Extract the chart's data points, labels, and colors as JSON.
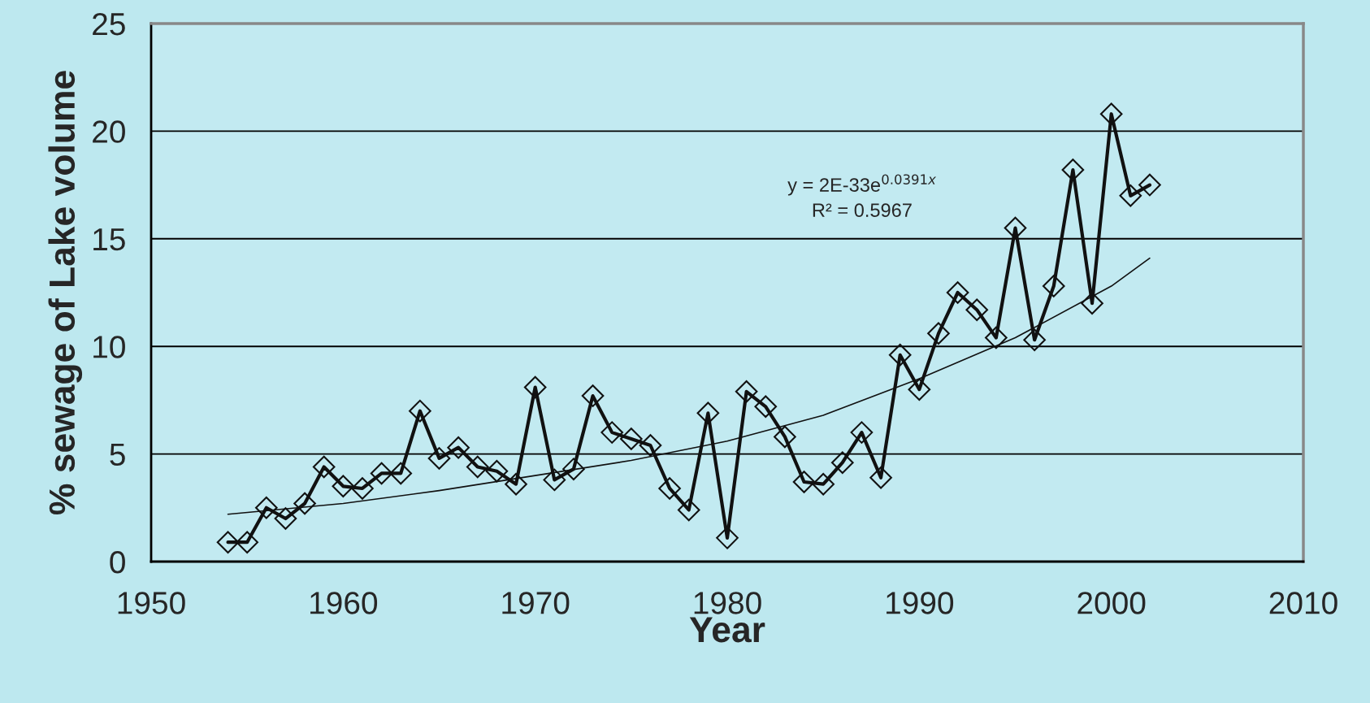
{
  "chart_data": {
    "type": "line",
    "xlabel": "Year",
    "ylabel": "% sewage of Lake volume",
    "xlim": [
      1950,
      2010
    ],
    "xticks": [
      1950,
      1960,
      1970,
      1980,
      1990,
      2000,
      2010
    ],
    "ylim": [
      0,
      25
    ],
    "yticks": [
      0,
      5,
      10,
      15,
      20,
      25
    ],
    "grid": "y",
    "legend": false,
    "series": [
      {
        "color": "#111111",
        "marker": "diamond",
        "line_style": "solid",
        "x": [
          1954,
          1955,
          1956,
          1957,
          1958,
          1959,
          1960,
          1961,
          1962,
          1963,
          1964,
          1965,
          1966,
          1967,
          1968,
          1969,
          1970,
          1971,
          1972,
          1973,
          1974,
          1975,
          1976,
          1977,
          1978,
          1979,
          1980,
          1981,
          1982,
          1983,
          1984,
          1985,
          1986,
          1987,
          1988,
          1989,
          1990,
          1991,
          1992,
          1993,
          1994,
          1995,
          1996,
          1997,
          1998,
          1999,
          2000,
          2001,
          2002
        ],
        "values": [
          0.9,
          0.9,
          2.5,
          2.0,
          2.7,
          4.4,
          3.5,
          3.4,
          4.1,
          4.1,
          7.0,
          4.8,
          5.3,
          4.4,
          4.2,
          3.6,
          8.1,
          3.8,
          4.3,
          7.7,
          6.0,
          5.7,
          5.4,
          3.4,
          2.4,
          6.9,
          1.1,
          7.9,
          7.2,
          5.8,
          3.7,
          3.6,
          4.6,
          6.0,
          3.9,
          9.6,
          8.0,
          10.6,
          12.5,
          11.7,
          10.4,
          15.5,
          10.3,
          12.8,
          18.2,
          12.0,
          20.8,
          17.0,
          17.5
        ]
      },
      {
        "type": "line",
        "color": "#111111",
        "marker": "none",
        "line_style": "solid",
        "x": [
          1954,
          1960,
          1965,
          1970,
          1975,
          1980,
          1985,
          1990,
          1995,
          2000,
          2002
        ],
        "values": [
          2.2,
          2.7,
          3.3,
          4.0,
          4.7,
          5.6,
          6.8,
          8.5,
          10.4,
          12.8,
          14.1
        ]
      }
    ],
    "annotations": [
      "y = 2E-33e$^{0.0391x}$",
      "R² = 0.5967"
    ]
  }
}
